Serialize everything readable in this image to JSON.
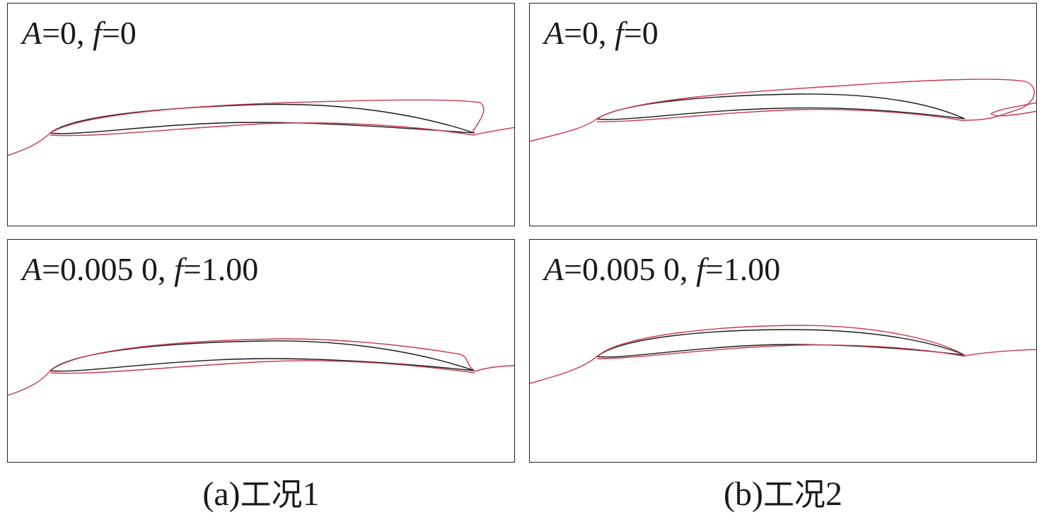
{
  "panels": {
    "a_top": {
      "A_var": "A",
      "A_val": "=0, ",
      "f_var": "f",
      "f_val": "=0"
    },
    "b_top": {
      "A_var": "A",
      "A_val": "=0, ",
      "f_var": "f",
      "f_val": "=0"
    },
    "a_bottom": {
      "A_var": "A",
      "A_val": "=0.005 0, ",
      "f_var": "f",
      "f_val": "=1.00"
    },
    "b_bottom": {
      "A_var": "A",
      "A_val": "=0.005 0, ",
      "f_var": "f",
      "f_val": "=1.00"
    }
  },
  "captions": {
    "a": {
      "tag": "(a) ",
      "text": "工况",
      "num": "1"
    },
    "b": {
      "tag": "(b) ",
      "text": "工况",
      "num": "2"
    }
  },
  "colors": {
    "streamline": "#c8384e",
    "airfoil": "#1b1b1b",
    "frame": "#222222"
  }
}
